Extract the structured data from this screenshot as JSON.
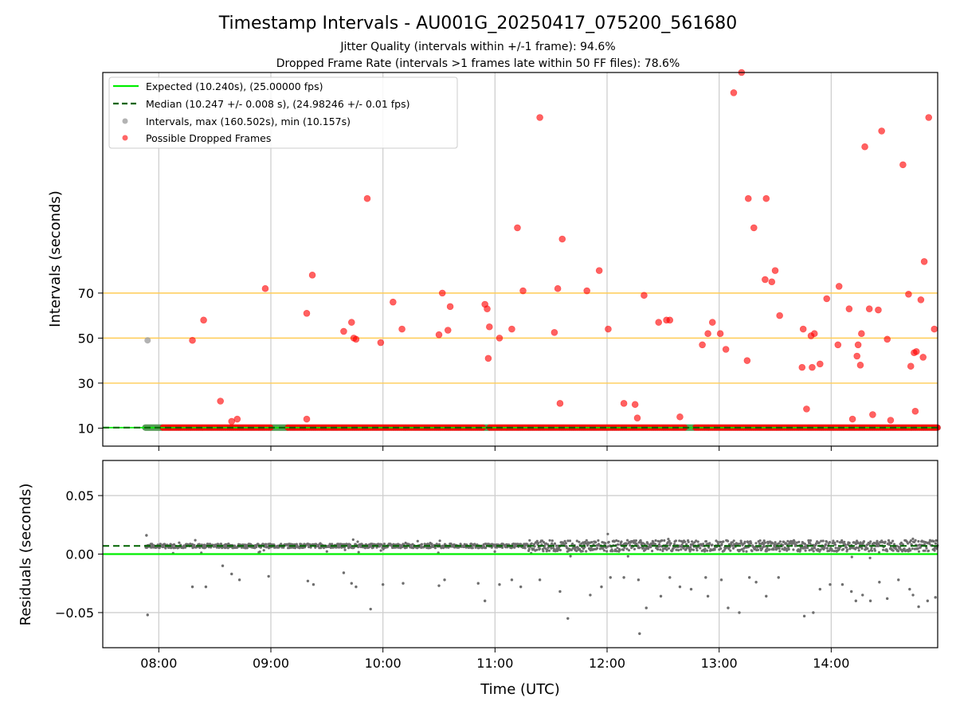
{
  "chart_data": {
    "type": "scatter",
    "title": "Timestamp Intervals - AU001G_20250417_075200_561680",
    "subtitle_lines": [
      "Jitter Quality (intervals within +/-1 frame): 94.6%",
      "Dropped Frame Rate (intervals >1 frames late within 50 FF files): 78.6%"
    ],
    "xlabel": "Time (UTC)",
    "x_ticks": [
      "08:00",
      "09:00",
      "10:00",
      "11:00",
      "12:00",
      "13:00",
      "14:00"
    ],
    "x_tick_hours": [
      8,
      9,
      10,
      11,
      12,
      13,
      14
    ],
    "xlim_hours": [
      7.5,
      14.95
    ],
    "grid": true,
    "colors": {
      "expected": "#00ee00",
      "median": "#006400",
      "intervals": "#808080",
      "dropped": "#ff0000",
      "reference_lines": "#ffcc55",
      "grid": "#cfcfcf"
    },
    "top_panel": {
      "ylabel": "Intervals (seconds)",
      "y_ticks": [
        10,
        30,
        50,
        70
      ],
      "ylim": [
        2,
        168
      ],
      "reference_lines": [
        30,
        50,
        70
      ],
      "expected": 10.24,
      "median": 10.247,
      "data_span_hours": [
        7.88,
        14.95
      ],
      "normal_segments_hours": [
        [
          7.88,
          8.03
        ],
        [
          9.0,
          9.15
        ],
        [
          10.9,
          10.95
        ],
        [
          12.7,
          12.78
        ]
      ],
      "dropped_points": [
        [
          8.3,
          49
        ],
        [
          8.4,
          58
        ],
        [
          8.55,
          22
        ],
        [
          8.65,
          13
        ],
        [
          8.7,
          14
        ],
        [
          8.95,
          72
        ],
        [
          9.32,
          61
        ],
        [
          9.32,
          14
        ],
        [
          9.37,
          78
        ],
        [
          9.65,
          53
        ],
        [
          9.72,
          57
        ],
        [
          9.74,
          50
        ],
        [
          9.76,
          49.5
        ],
        [
          9.86,
          112
        ],
        [
          9.98,
          48
        ],
        [
          10.09,
          66
        ],
        [
          10.17,
          54
        ],
        [
          10.5,
          51.5
        ],
        [
          10.53,
          70
        ],
        [
          10.58,
          53.5
        ],
        [
          10.6,
          64
        ],
        [
          10.91,
          65
        ],
        [
          10.93,
          63
        ],
        [
          10.94,
          41
        ],
        [
          10.95,
          55
        ],
        [
          11.04,
          50
        ],
        [
          11.15,
          54
        ],
        [
          11.2,
          99
        ],
        [
          11.25,
          71
        ],
        [
          11.4,
          148
        ],
        [
          11.53,
          52.5
        ],
        [
          11.56,
          72
        ],
        [
          11.58,
          21
        ],
        [
          11.6,
          94
        ],
        [
          11.82,
          71
        ],
        [
          11.93,
          80
        ],
        [
          12.01,
          54
        ],
        [
          12.15,
          21
        ],
        [
          12.25,
          20.5
        ],
        [
          12.27,
          14.5
        ],
        [
          12.33,
          69
        ],
        [
          12.46,
          57
        ],
        [
          12.53,
          58
        ],
        [
          12.56,
          58
        ],
        [
          12.65,
          15
        ],
        [
          12.85,
          47
        ],
        [
          12.9,
          52
        ],
        [
          12.94,
          57
        ],
        [
          13.01,
          52
        ],
        [
          13.06,
          45
        ],
        [
          13.13,
          159
        ],
        [
          13.2,
          168
        ],
        [
          13.25,
          40
        ],
        [
          13.26,
          112
        ],
        [
          13.31,
          99
        ],
        [
          13.41,
          76
        ],
        [
          13.42,
          112
        ],
        [
          13.47,
          75
        ],
        [
          13.5,
          80
        ],
        [
          13.54,
          60
        ],
        [
          13.74,
          37
        ],
        [
          13.75,
          54
        ],
        [
          13.78,
          18.5
        ],
        [
          13.82,
          51
        ],
        [
          13.83,
          37
        ],
        [
          13.85,
          52
        ],
        [
          13.9,
          38.5
        ],
        [
          13.96,
          67.5
        ],
        [
          14.06,
          47
        ],
        [
          14.07,
          73
        ],
        [
          14.16,
          63
        ],
        [
          14.19,
          14
        ],
        [
          14.23,
          42
        ],
        [
          14.24,
          47
        ],
        [
          14.26,
          38
        ],
        [
          14.27,
          52
        ],
        [
          14.3,
          135
        ],
        [
          14.34,
          63
        ],
        [
          14.37,
          16
        ],
        [
          14.42,
          62.5
        ],
        [
          14.45,
          142
        ],
        [
          14.5,
          49.5
        ],
        [
          14.53,
          13.5
        ],
        [
          14.64,
          127
        ],
        [
          14.69,
          69.5
        ],
        [
          14.71,
          37.5
        ],
        [
          14.74,
          43.5
        ],
        [
          14.76,
          44
        ],
        [
          14.75,
          17.5
        ],
        [
          14.8,
          67
        ],
        [
          14.82,
          41.5
        ],
        [
          14.83,
          84
        ],
        [
          14.87,
          148
        ],
        [
          14.92,
          54
        ]
      ],
      "gray_points": [
        [
          7.9,
          49
        ]
      ]
    },
    "bottom_panel": {
      "ylabel": "Residuals (seconds)",
      "y_ticks": [
        "0.05",
        "0.00",
        "−0.05"
      ],
      "y_tick_values": [
        0.05,
        0.0,
        -0.05
      ],
      "ylim": [
        -0.08,
        0.08
      ],
      "expected": 0.0,
      "median": 0.007,
      "outliers": [
        [
          7.89,
          0.016
        ],
        [
          7.9,
          -0.052
        ],
        [
          8.3,
          -0.028
        ],
        [
          8.42,
          -0.028
        ],
        [
          8.57,
          -0.01
        ],
        [
          8.65,
          -0.017
        ],
        [
          8.72,
          -0.022
        ],
        [
          8.98,
          -0.019
        ],
        [
          9.33,
          -0.023
        ],
        [
          9.38,
          -0.026
        ],
        [
          9.65,
          -0.016
        ],
        [
          9.72,
          -0.025
        ],
        [
          9.76,
          -0.028
        ],
        [
          9.89,
          -0.047
        ],
        [
          10.0,
          -0.026
        ],
        [
          10.18,
          -0.025
        ],
        [
          10.5,
          -0.027
        ],
        [
          10.55,
          -0.022
        ],
        [
          10.85,
          -0.025
        ],
        [
          10.91,
          -0.04
        ],
        [
          11.04,
          -0.026
        ],
        [
          11.15,
          -0.022
        ],
        [
          11.23,
          -0.028
        ],
        [
          11.4,
          -0.022
        ],
        [
          11.58,
          -0.032
        ],
        [
          11.65,
          -0.055
        ],
        [
          11.85,
          -0.035
        ],
        [
          11.95,
          -0.028
        ],
        [
          12.03,
          -0.02
        ],
        [
          12.15,
          -0.02
        ],
        [
          12.28,
          -0.022
        ],
        [
          12.29,
          -0.068
        ],
        [
          12.35,
          -0.046
        ],
        [
          12.48,
          -0.036
        ],
        [
          12.56,
          -0.02
        ],
        [
          12.65,
          -0.028
        ],
        [
          12.75,
          -0.03
        ],
        [
          12.88,
          -0.02
        ],
        [
          12.9,
          -0.036
        ],
        [
          13.02,
          -0.022
        ],
        [
          13.08,
          -0.046
        ],
        [
          13.18,
          -0.05
        ],
        [
          13.27,
          -0.02
        ],
        [
          13.33,
          -0.024
        ],
        [
          13.42,
          -0.036
        ],
        [
          13.53,
          -0.02
        ],
        [
          13.76,
          -0.053
        ],
        [
          13.84,
          -0.05
        ],
        [
          13.9,
          -0.03
        ],
        [
          13.99,
          -0.026
        ],
        [
          14.1,
          -0.026
        ],
        [
          14.18,
          -0.032
        ],
        [
          14.22,
          -0.04
        ],
        [
          14.28,
          -0.035
        ],
        [
          14.35,
          -0.04
        ],
        [
          14.43,
          -0.024
        ],
        [
          14.5,
          -0.038
        ],
        [
          14.6,
          -0.022
        ],
        [
          14.7,
          -0.03
        ],
        [
          14.73,
          -0.035
        ],
        [
          14.78,
          -0.045
        ],
        [
          14.86,
          -0.04
        ],
        [
          14.93,
          -0.037
        ]
      ]
    },
    "legend": {
      "placement": "upper-left",
      "entries": [
        {
          "label": "Expected (10.240s), (25.00000 fps)",
          "marker": "solid-line",
          "color": "#00ee00"
        },
        {
          "label": "Median (10.247 +/- 0.008 s), (24.98246 +/- 0.01 fps)",
          "marker": "dashed-line",
          "color": "#006400"
        },
        {
          "label": "Intervals, max (160.502s), min (10.157s)",
          "marker": "dot",
          "color": "#9a9a9a"
        },
        {
          "label": "Possible Dropped Frames",
          "marker": "dot",
          "color": "#ff3333"
        }
      ]
    }
  }
}
